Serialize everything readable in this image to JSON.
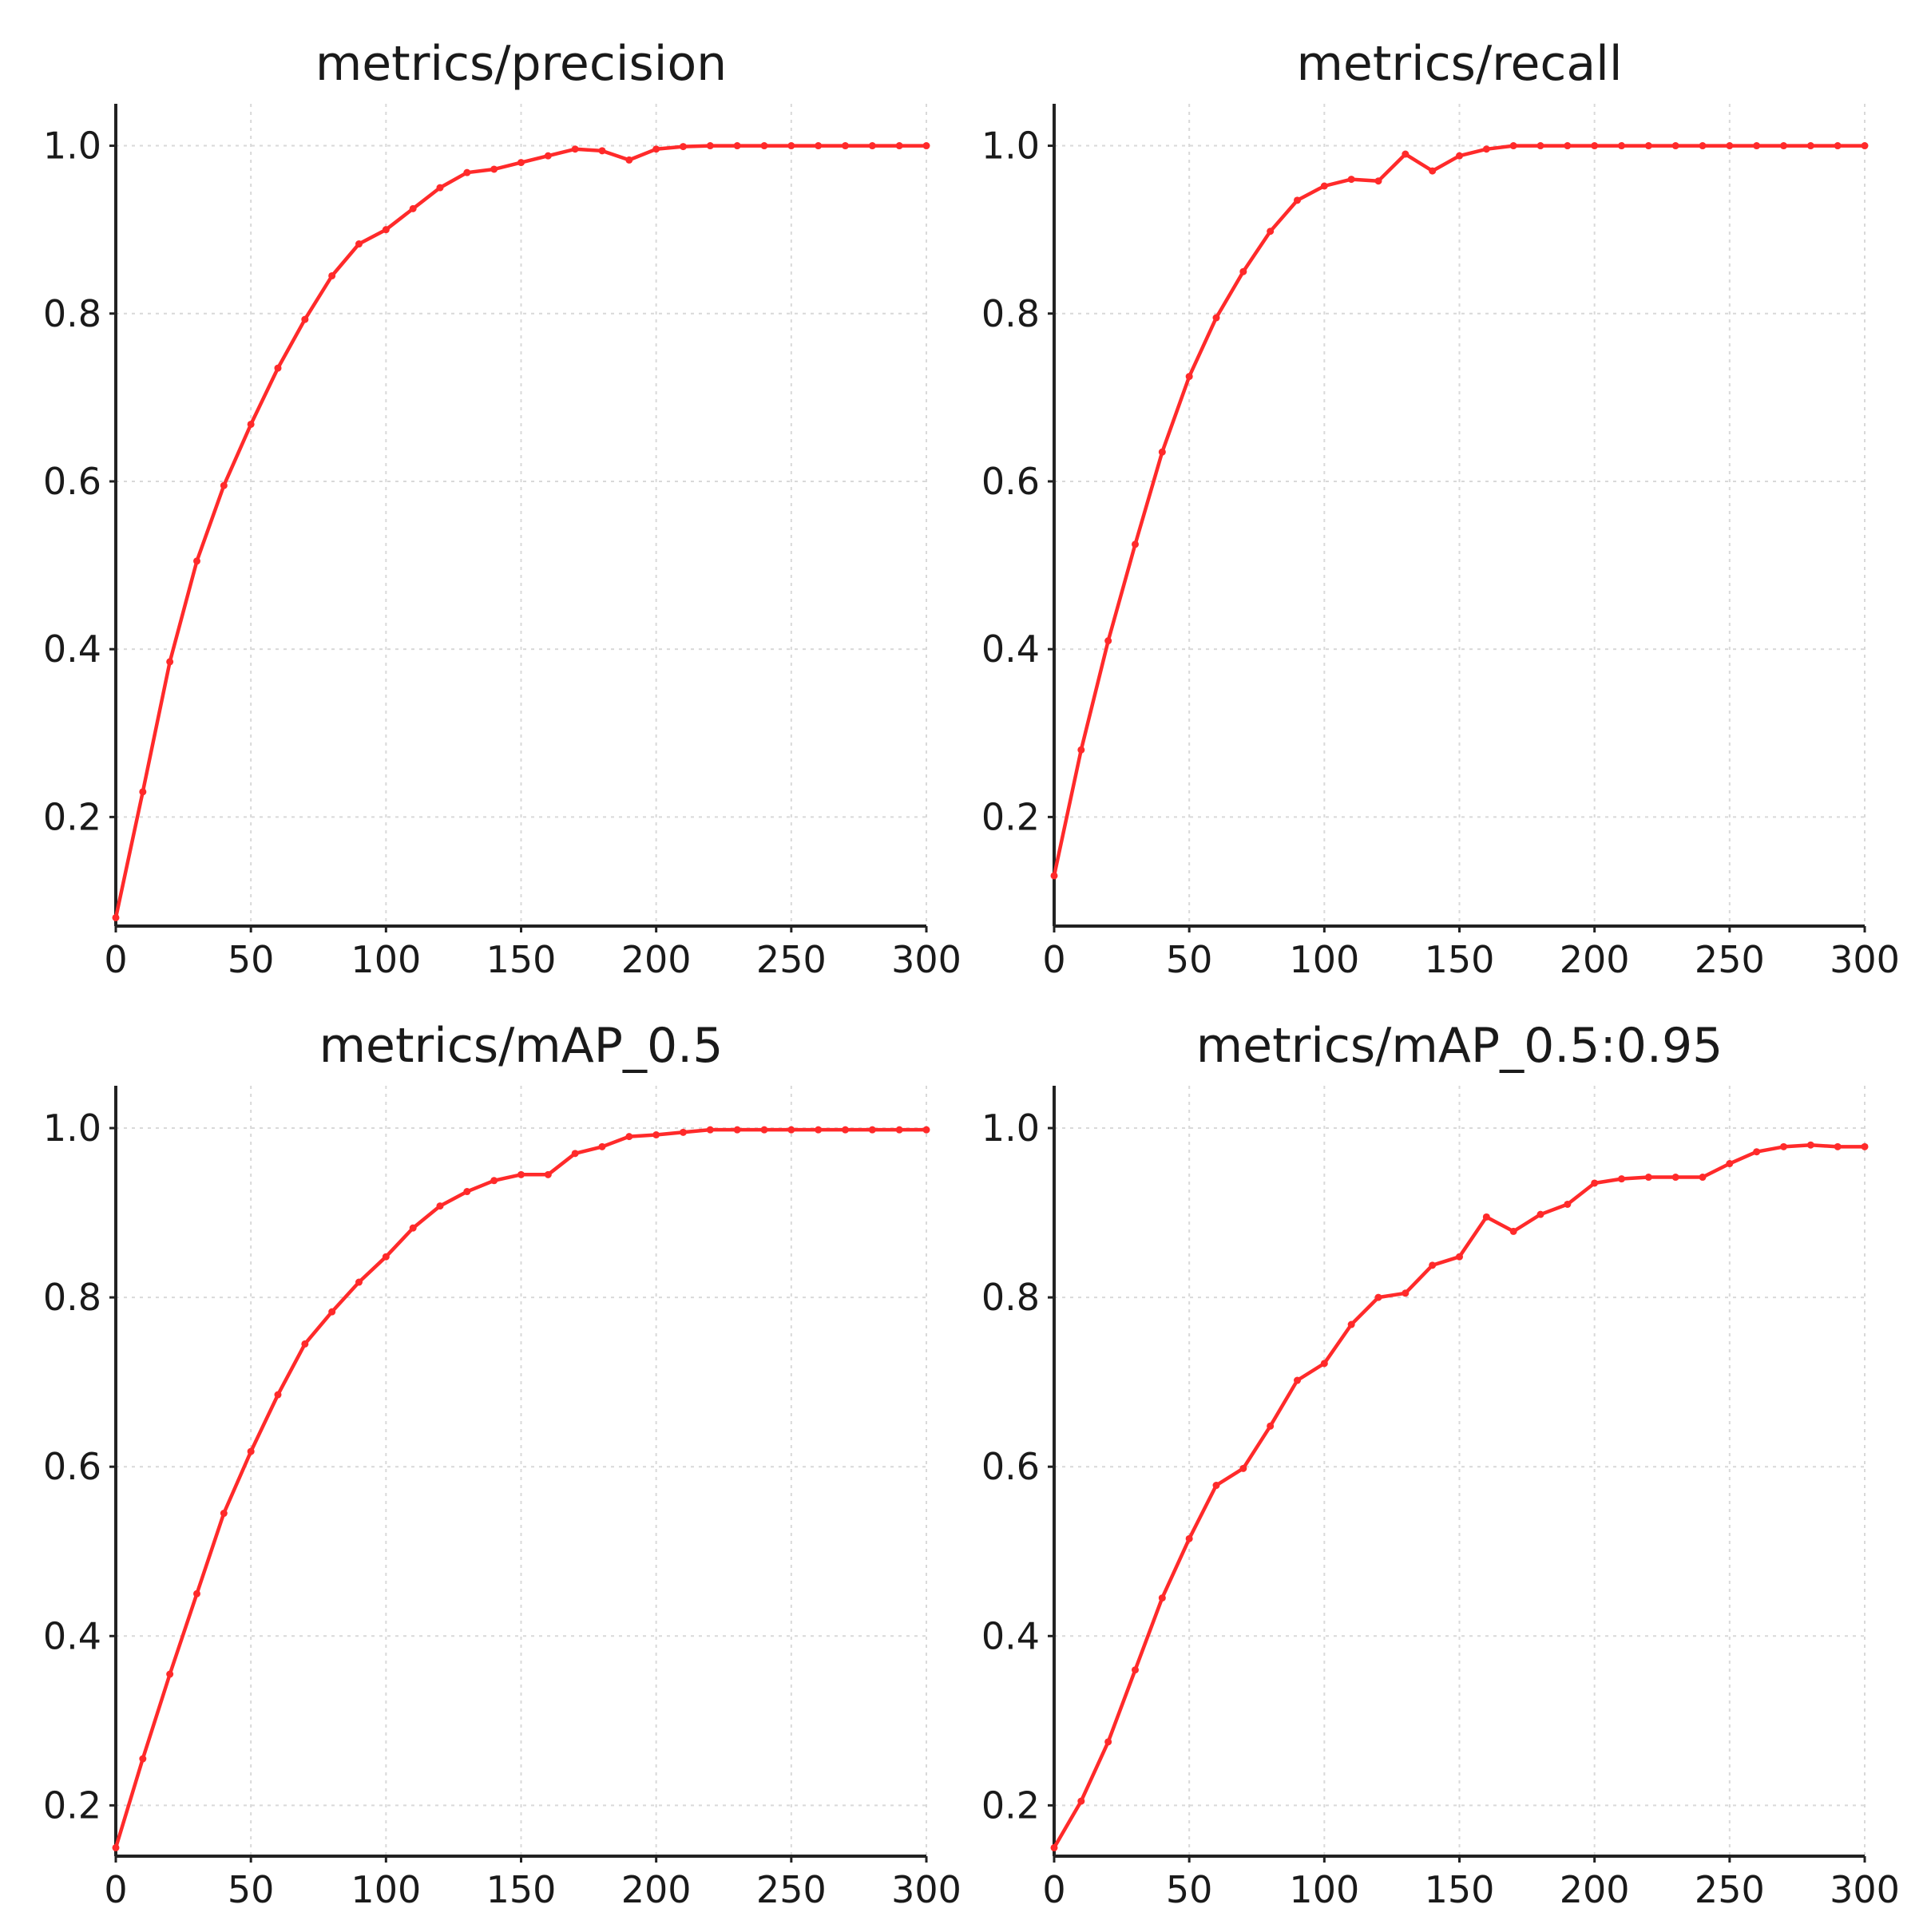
{
  "chart_data": [
    {
      "type": "line",
      "title": "metrics/precision",
      "xlabel": "",
      "ylabel": "",
      "xlim": [
        0,
        300
      ],
      "ylim": [
        0.07,
        1.05
      ],
      "xticks": [
        0,
        50,
        100,
        150,
        200,
        250,
        300
      ],
      "xtick_labels": [
        "0",
        "50",
        "100",
        "150",
        "200",
        "250",
        "300"
      ],
      "yticks": [
        0.2,
        0.4,
        0.6,
        0.8,
        1.0
      ],
      "ytick_labels": [
        "0.2",
        "0.4",
        "0.6",
        "0.8",
        "1.0"
      ],
      "grid": true,
      "line_color": "#ff2a2a",
      "series": [
        {
          "x": [
            0,
            10,
            20,
            30,
            40,
            50,
            60,
            70,
            80,
            90,
            100,
            110,
            120,
            130,
            140,
            150,
            160,
            170,
            180,
            190,
            200,
            210,
            220,
            230,
            240,
            250,
            260,
            270,
            280,
            290,
            300
          ],
          "y": [
            0.08,
            0.23,
            0.385,
            0.505,
            0.595,
            0.668,
            0.735,
            0.793,
            0.845,
            0.883,
            0.9,
            0.925,
            0.95,
            0.968,
            0.972,
            0.98,
            0.988,
            0.996,
            0.994,
            0.983,
            0.996,
            0.999,
            1.0,
            1.0,
            1.0,
            1.0,
            1.0,
            1.0,
            1.0,
            1.0,
            1.0
          ]
        }
      ]
    },
    {
      "type": "line",
      "title": "metrics/recall",
      "xlabel": "",
      "ylabel": "",
      "xlim": [
        0,
        300
      ],
      "ylim": [
        0.07,
        1.05
      ],
      "xticks": [
        0,
        50,
        100,
        150,
        200,
        250,
        300
      ],
      "xtick_labels": [
        "0",
        "50",
        "100",
        "150",
        "200",
        "250",
        "300"
      ],
      "yticks": [
        0.2,
        0.4,
        0.6,
        0.8,
        1.0
      ],
      "ytick_labels": [
        "0.2",
        "0.4",
        "0.6",
        "0.8",
        "1.0"
      ],
      "grid": true,
      "line_color": "#ff2a2a",
      "series": [
        {
          "x": [
            0,
            10,
            20,
            30,
            40,
            50,
            60,
            70,
            80,
            90,
            100,
            110,
            120,
            130,
            140,
            150,
            160,
            170,
            180,
            190,
            200,
            210,
            220,
            230,
            240,
            250,
            260,
            270,
            280,
            290,
            300
          ],
          "y": [
            0.13,
            0.28,
            0.41,
            0.525,
            0.635,
            0.725,
            0.795,
            0.85,
            0.898,
            0.935,
            0.952,
            0.96,
            0.958,
            0.99,
            0.97,
            0.988,
            0.996,
            1.0,
            1.0,
            1.0,
            1.0,
            1.0,
            1.0,
            1.0,
            1.0,
            1.0,
            1.0,
            1.0,
            1.0,
            1.0,
            1.0
          ]
        }
      ]
    },
    {
      "type": "line",
      "title": "metrics/mAP_0.5",
      "xlabel": "",
      "ylabel": "",
      "xlim": [
        0,
        300
      ],
      "ylim": [
        0.14,
        1.05
      ],
      "xticks": [
        0,
        50,
        100,
        150,
        200,
        250,
        300
      ],
      "xtick_labels": [
        "0",
        "50",
        "100",
        "150",
        "200",
        "250",
        "300"
      ],
      "yticks": [
        0.2,
        0.4,
        0.6,
        0.8,
        1.0
      ],
      "ytick_labels": [
        "0.2",
        "0.4",
        "0.6",
        "0.8",
        "1.0"
      ],
      "grid": true,
      "line_color": "#ff2a2a",
      "series": [
        {
          "x": [
            0,
            10,
            20,
            30,
            40,
            50,
            60,
            70,
            80,
            90,
            100,
            110,
            120,
            130,
            140,
            150,
            160,
            170,
            180,
            190,
            200,
            210,
            220,
            230,
            240,
            250,
            260,
            270,
            280,
            290,
            300
          ],
          "y": [
            0.15,
            0.255,
            0.355,
            0.45,
            0.545,
            0.618,
            0.685,
            0.745,
            0.783,
            0.818,
            0.848,
            0.882,
            0.908,
            0.925,
            0.938,
            0.945,
            0.945,
            0.97,
            0.978,
            0.99,
            0.992,
            0.995,
            0.998,
            0.998,
            0.998,
            0.998,
            0.998,
            0.998,
            0.998,
            0.998,
            0.998
          ]
        }
      ]
    },
    {
      "type": "line",
      "title": "metrics/mAP_0.5:0.95",
      "xlabel": "",
      "ylabel": "",
      "xlim": [
        0,
        300
      ],
      "ylim": [
        0.14,
        1.05
      ],
      "xticks": [
        0,
        50,
        100,
        150,
        200,
        250,
        300
      ],
      "xtick_labels": [
        "0",
        "50",
        "100",
        "150",
        "200",
        "250",
        "300"
      ],
      "yticks": [
        0.2,
        0.4,
        0.6,
        0.8,
        1.0
      ],
      "ytick_labels": [
        "0.2",
        "0.4",
        "0.6",
        "0.8",
        "1.0"
      ],
      "grid": true,
      "line_color": "#ff2a2a",
      "series": [
        {
          "x": [
            0,
            10,
            20,
            30,
            40,
            50,
            60,
            70,
            80,
            90,
            100,
            110,
            120,
            130,
            140,
            150,
            160,
            170,
            180,
            190,
            200,
            210,
            220,
            230,
            240,
            250,
            260,
            270,
            280,
            290,
            300
          ],
          "y": [
            0.15,
            0.205,
            0.275,
            0.36,
            0.445,
            0.515,
            0.578,
            0.598,
            0.648,
            0.702,
            0.722,
            0.768,
            0.8,
            0.805,
            0.838,
            0.848,
            0.895,
            0.878,
            0.898,
            0.91,
            0.935,
            0.94,
            0.942,
            0.942,
            0.942,
            0.958,
            0.972,
            0.978,
            0.98,
            0.978,
            0.978
          ]
        }
      ]
    }
  ]
}
